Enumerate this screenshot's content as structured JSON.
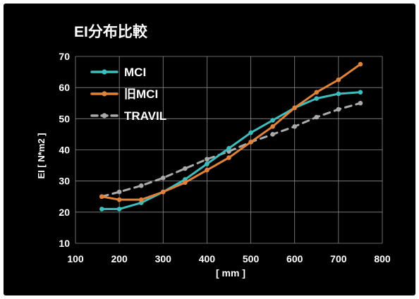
{
  "chart_data": {
    "type": "line",
    "title": "EI分布比較",
    "xlabel": "[ mm ]",
    "ylabel": "EI [ N*m2 ]",
    "xlim": [
      100,
      800
    ],
    "ylim": [
      10,
      70
    ],
    "x_ticks": [
      "100",
      "200",
      "300",
      "400",
      "500",
      "600",
      "700",
      "800"
    ],
    "y_ticks": [
      "10",
      "20",
      "30",
      "40",
      "50",
      "60",
      "70"
    ],
    "grid": true,
    "legend_position": "top-left",
    "series": [
      {
        "name": "MCI",
        "color": "#3dbdbd",
        "style": "solid",
        "x": [
          160,
          200,
          250,
          300,
          350,
          400,
          450,
          500,
          550,
          600,
          650,
          700,
          750
        ],
        "y": [
          21,
          21,
          23,
          26.5,
          30.5,
          35.5,
          40.5,
          45.5,
          49.5,
          53.5,
          56.5,
          58,
          58.5
        ]
      },
      {
        "name": "旧MCI",
        "color": "#e0823a",
        "style": "solid",
        "x": [
          160,
          200,
          250,
          300,
          350,
          400,
          450,
          500,
          550,
          600,
          650,
          700,
          750
        ],
        "y": [
          25,
          24,
          24,
          26.5,
          29.5,
          33.5,
          37.5,
          42.5,
          47.5,
          53.5,
          58.5,
          62.5,
          67.5
        ]
      },
      {
        "name": "TRAVIL",
        "color": "#aaaaaa",
        "style": "dashed",
        "x": [
          160,
          200,
          250,
          300,
          350,
          400,
          450,
          500,
          550,
          600,
          650,
          700,
          750
        ],
        "y": [
          25,
          26.5,
          28.5,
          31,
          34,
          37,
          39.5,
          42.5,
          45,
          47.5,
          50.5,
          53,
          55
        ]
      }
    ]
  }
}
